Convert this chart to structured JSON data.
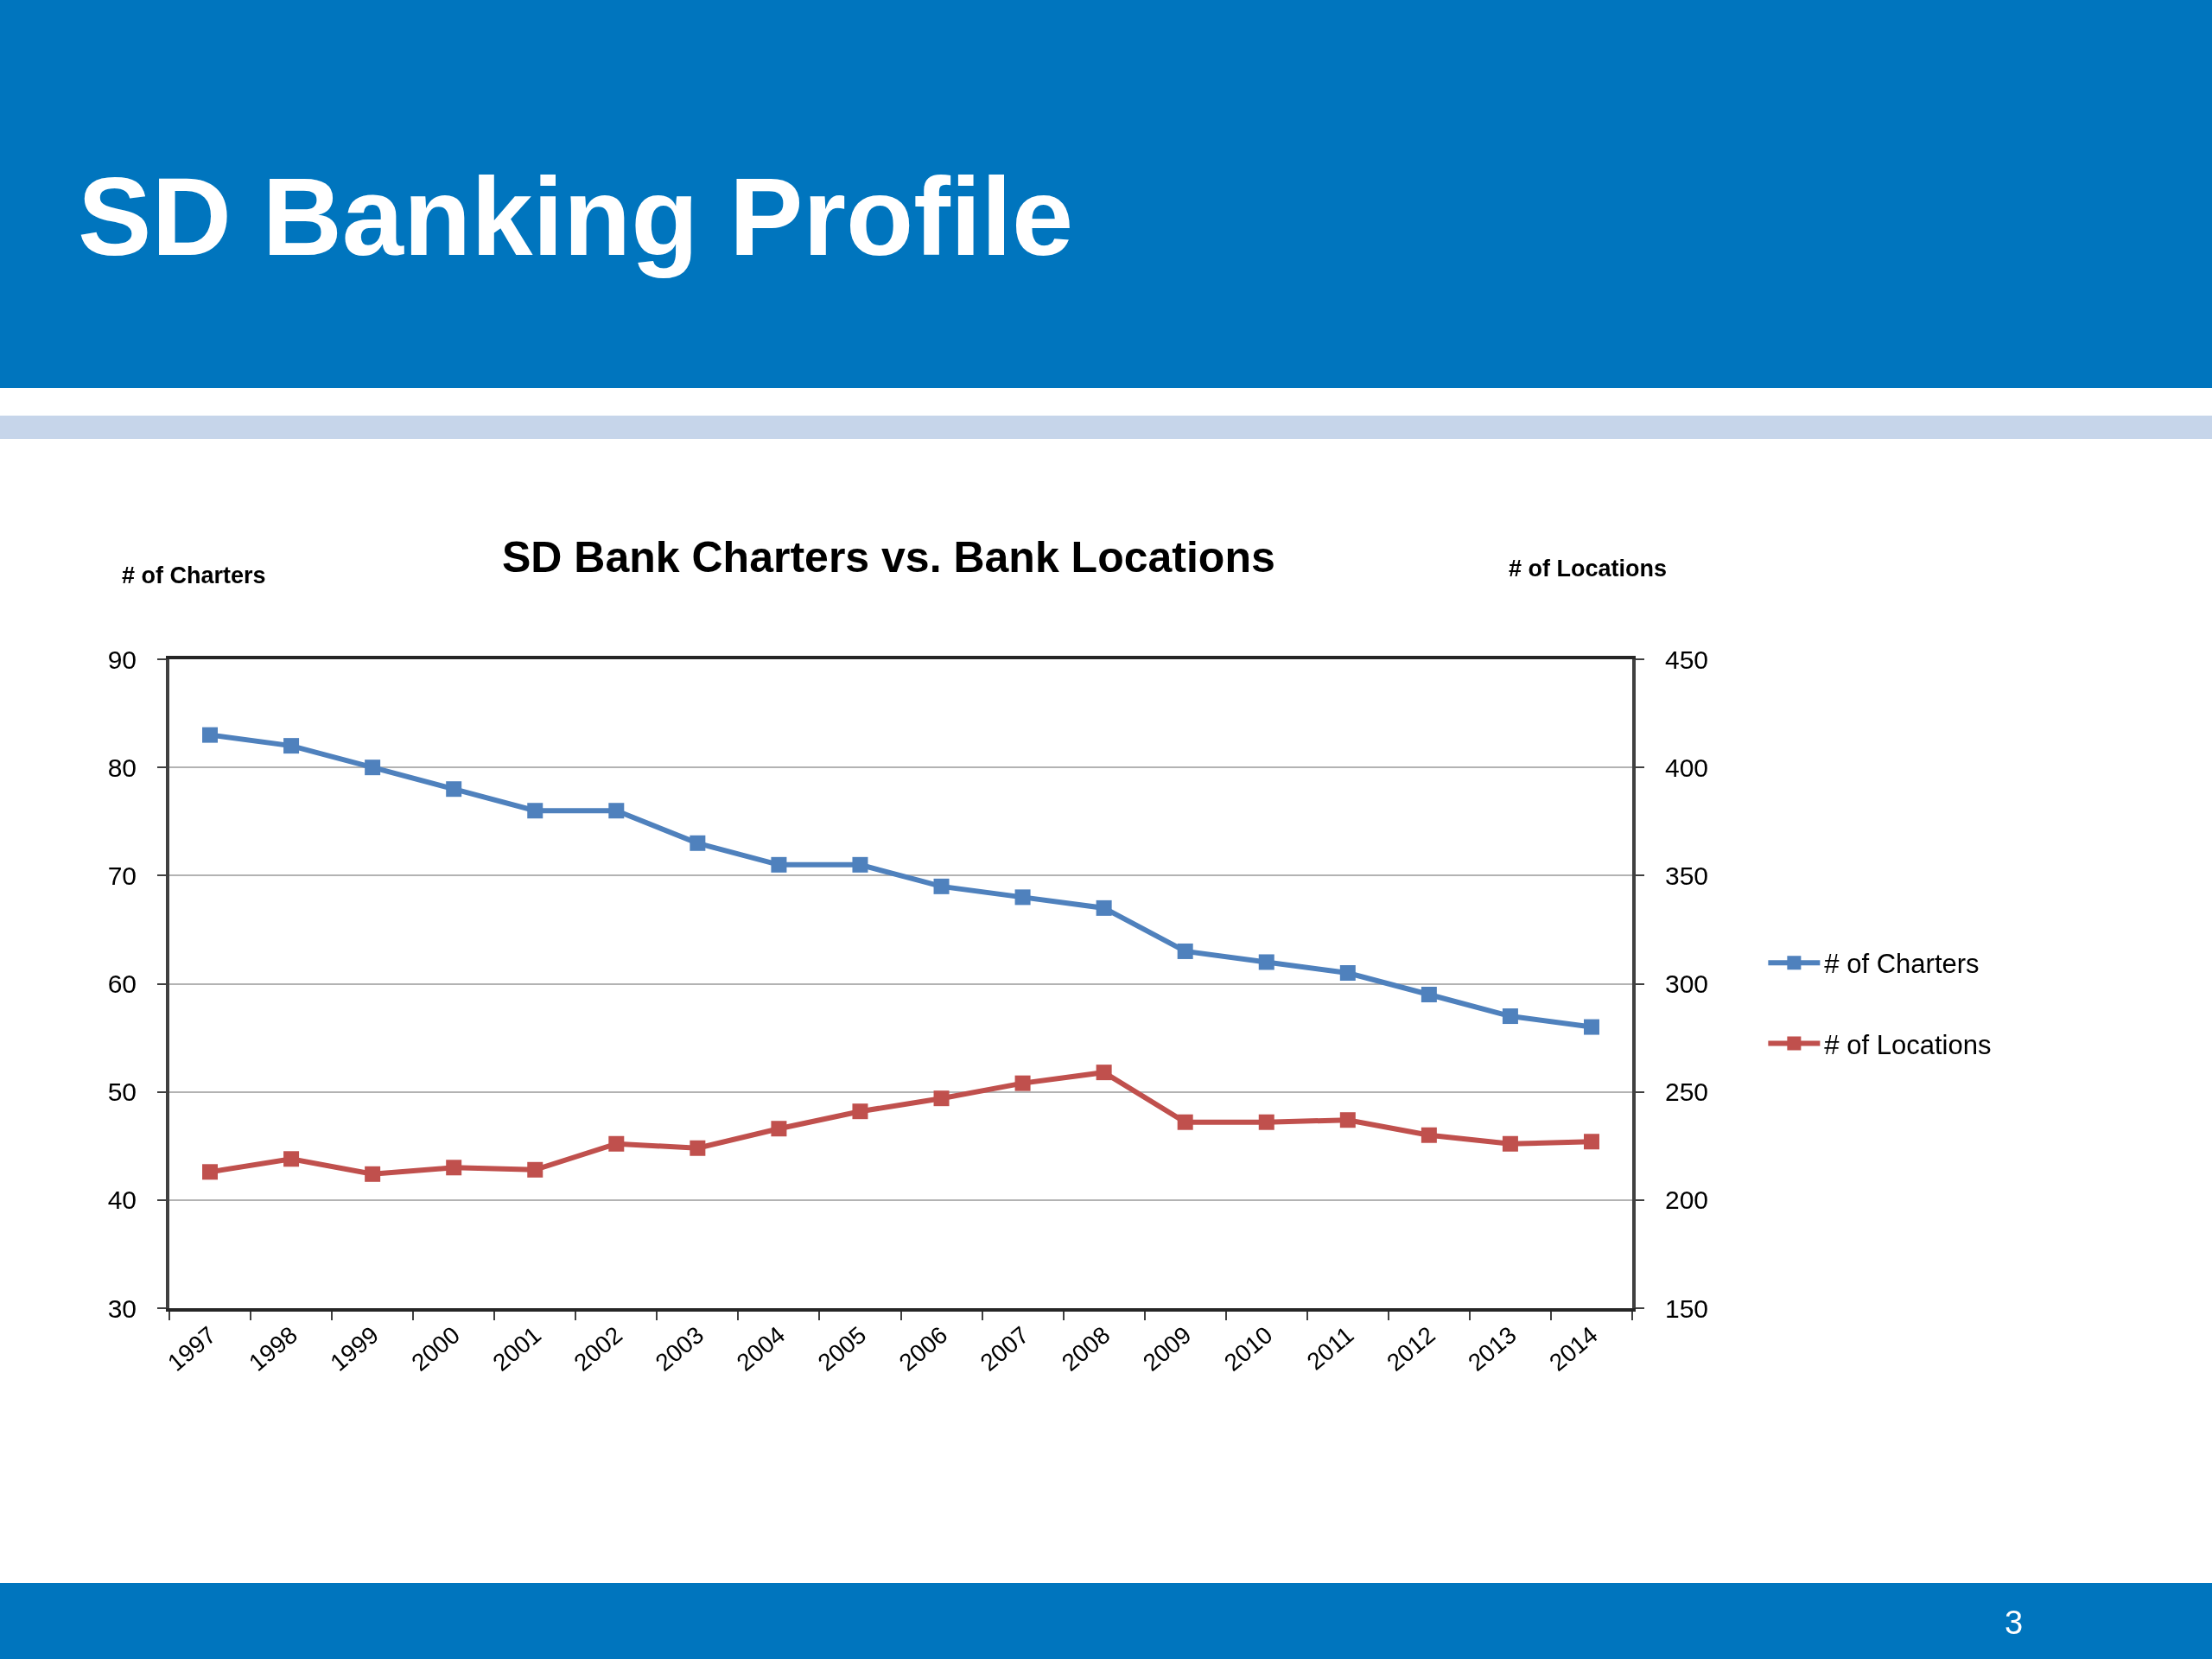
{
  "chart_data": {
    "type": "line",
    "title": "SD Banking Profile",
    "subtitle": "SD Bank Charters vs. Bank Locations",
    "ylabel": "# of Charters",
    "y2label": "# of Locations",
    "annotations": [
      "3"
    ],
    "categories": [
      "1997",
      "1998",
      "1999",
      "2000",
      "2001",
      "2002",
      "2003",
      "2004",
      "2005",
      "2006",
      "2007",
      "2008",
      "2009",
      "2010",
      "2011",
      "2012",
      "2013",
      "2014"
    ],
    "series": [
      {
        "name": "# of Charters",
        "color": "#4f81bd",
        "values": [
          83,
          82,
          80,
          78,
          76,
          76,
          73,
          71,
          71,
          69,
          68,
          67,
          63,
          62,
          61,
          59,
          57,
          56
        ]
      },
      {
        "name": "# of Locations",
        "color": "#c0504d",
        "axis": "y2",
        "values": [
          213,
          219,
          212,
          215,
          214,
          226,
          224,
          233,
          241,
          247,
          254,
          259,
          236,
          236,
          237,
          230,
          226,
          227
        ]
      }
    ],
    "ylim": [
      30,
      90
    ],
    "yticks": [
      30,
      40,
      50,
      60,
      70,
      80,
      90
    ],
    "y2lim": [
      150,
      450
    ],
    "y2ticks": [
      150,
      200,
      250,
      300,
      350,
      400,
      450
    ],
    "grid": "y",
    "legend": "right",
    "marker": "square"
  }
}
